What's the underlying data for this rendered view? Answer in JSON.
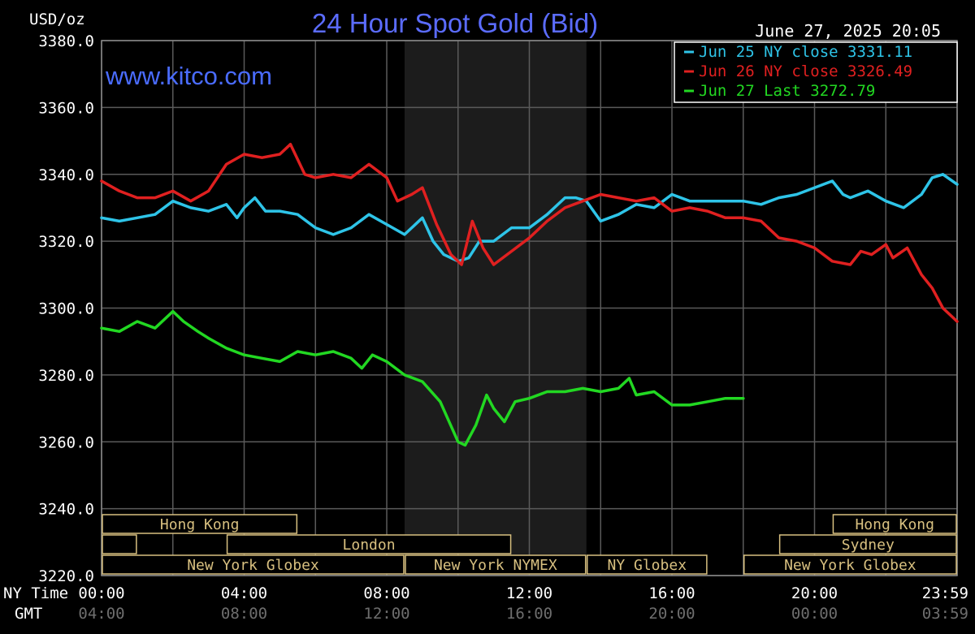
{
  "chart_data": {
    "type": "line",
    "title": "24 Hour Spot Gold (Bid)",
    "ylabel": "USD/oz",
    "watermark": "www.kitco.com",
    "timestamp": "June 27, 2025 20:05",
    "ylim": [
      3220,
      3380
    ],
    "y_ticks": [
      "3380.0",
      "3360.0",
      "3340.0",
      "3320.0",
      "3300.0",
      "3280.0",
      "3260.0",
      "3240.0",
      "3220.0"
    ],
    "x_ticks_ny": [
      "00:00",
      "04:00",
      "08:00",
      "12:00",
      "16:00",
      "20:00",
      "23:59"
    ],
    "x_ticks_gmt": [
      "04:00",
      "08:00",
      "12:00",
      "16:00",
      "20:00",
      "00:00",
      "03:59"
    ],
    "ny_time_label": "NY Time",
    "gmt_label": "GMT",
    "grid": true,
    "legend_position": "top-right",
    "shaded_region_hours": [
      8.5,
      13.6
    ],
    "colors": {
      "background": "#000000",
      "grid": "#5a5a5a",
      "shade": "#1c1c1c",
      "title": "#5b6cff",
      "watermark": "#4a6cff",
      "session": "#d8c080",
      "axis_text": "#ffffff",
      "gmt_text": "#6e6e6e"
    },
    "series": [
      {
        "name": "Jun 25 NY close 3331.11",
        "color": "#2ec4e8",
        "points": [
          [
            0,
            3327
          ],
          [
            0.5,
            3326
          ],
          [
            1,
            3327
          ],
          [
            1.5,
            3328
          ],
          [
            2,
            3332
          ],
          [
            2.5,
            3330
          ],
          [
            3,
            3329
          ],
          [
            3.5,
            3331
          ],
          [
            3.8,
            3327
          ],
          [
            4,
            3330
          ],
          [
            4.3,
            3333
          ],
          [
            4.6,
            3329
          ],
          [
            5,
            3329
          ],
          [
            5.5,
            3328
          ],
          [
            6,
            3324
          ],
          [
            6.5,
            3322
          ],
          [
            7,
            3324
          ],
          [
            7.5,
            3328
          ],
          [
            8,
            3325
          ],
          [
            8.5,
            3322
          ],
          [
            9,
            3327
          ],
          [
            9.3,
            3320
          ],
          [
            9.6,
            3316
          ],
          [
            10,
            3314
          ],
          [
            10.3,
            3315
          ],
          [
            10.6,
            3320
          ],
          [
            11,
            3320
          ],
          [
            11.5,
            3324
          ],
          [
            12,
            3324
          ],
          [
            12.5,
            3328
          ],
          [
            13,
            3333
          ],
          [
            13.3,
            3333
          ],
          [
            13.6,
            3332
          ],
          [
            14,
            3326
          ],
          [
            14.5,
            3328
          ],
          [
            15,
            3331
          ],
          [
            15.5,
            3330
          ],
          [
            16,
            3334
          ],
          [
            16.5,
            3332
          ],
          [
            17,
            3332
          ],
          [
            17.5,
            3332
          ],
          [
            18,
            3332
          ],
          [
            18.5,
            3331
          ],
          [
            19,
            3333
          ],
          [
            19.5,
            3334
          ],
          [
            20,
            3336
          ],
          [
            20.5,
            3338
          ],
          [
            20.8,
            3334
          ],
          [
            21,
            3333
          ],
          [
            21.5,
            3335
          ],
          [
            22,
            3332
          ],
          [
            22.5,
            3330
          ],
          [
            23,
            3334
          ],
          [
            23.3,
            3339
          ],
          [
            23.6,
            3340
          ],
          [
            24,
            3337
          ]
        ]
      },
      {
        "name": "Jun 26 NY close 3326.49",
        "color": "#e02020",
        "points": [
          [
            0,
            3338
          ],
          [
            0.5,
            3335
          ],
          [
            1,
            3333
          ],
          [
            1.5,
            3333
          ],
          [
            2,
            3335
          ],
          [
            2.5,
            3332
          ],
          [
            3,
            3335
          ],
          [
            3.5,
            3343
          ],
          [
            4,
            3346
          ],
          [
            4.5,
            3345
          ],
          [
            5,
            3346
          ],
          [
            5.3,
            3349
          ],
          [
            5.7,
            3340
          ],
          [
            6,
            3339
          ],
          [
            6.5,
            3340
          ],
          [
            7,
            3339
          ],
          [
            7.5,
            3343
          ],
          [
            8,
            3339
          ],
          [
            8.3,
            3332
          ],
          [
            8.7,
            3334
          ],
          [
            9,
            3336
          ],
          [
            9.4,
            3325
          ],
          [
            9.8,
            3316
          ],
          [
            10.1,
            3313
          ],
          [
            10.4,
            3326
          ],
          [
            10.7,
            3318
          ],
          [
            11,
            3313
          ],
          [
            11.5,
            3317
          ],
          [
            12,
            3321
          ],
          [
            12.5,
            3326
          ],
          [
            13,
            3330
          ],
          [
            13.5,
            3332
          ],
          [
            14,
            3334
          ],
          [
            14.5,
            3333
          ],
          [
            15,
            3332
          ],
          [
            15.5,
            3333
          ],
          [
            16,
            3329
          ],
          [
            16.5,
            3330
          ],
          [
            17,
            3329
          ],
          [
            17.5,
            3327
          ],
          [
            18,
            3327
          ],
          [
            18.5,
            3326
          ],
          [
            19,
            3321
          ],
          [
            19.5,
            3320
          ],
          [
            20,
            3318
          ],
          [
            20.5,
            3314
          ],
          [
            21,
            3313
          ],
          [
            21.3,
            3317
          ],
          [
            21.6,
            3316
          ],
          [
            22,
            3319
          ],
          [
            22.2,
            3315
          ],
          [
            22.6,
            3318
          ],
          [
            23,
            3310
          ],
          [
            23.3,
            3306
          ],
          [
            23.6,
            3300
          ],
          [
            24,
            3296
          ]
        ]
      },
      {
        "name": "Jun 27 Last 3272.79",
        "color": "#22d822",
        "points": [
          [
            0,
            3294
          ],
          [
            0.5,
            3293
          ],
          [
            1,
            3296
          ],
          [
            1.5,
            3294
          ],
          [
            2,
            3299
          ],
          [
            2.3,
            3296
          ],
          [
            2.7,
            3293
          ],
          [
            3,
            3291
          ],
          [
            3.5,
            3288
          ],
          [
            4,
            3286
          ],
          [
            4.5,
            3285
          ],
          [
            5,
            3284
          ],
          [
            5.5,
            3287
          ],
          [
            6,
            3286
          ],
          [
            6.5,
            3287
          ],
          [
            7,
            3285
          ],
          [
            7.3,
            3282
          ],
          [
            7.6,
            3286
          ],
          [
            8,
            3284
          ],
          [
            8.5,
            3280
          ],
          [
            9,
            3278
          ],
          [
            9.5,
            3272
          ],
          [
            10,
            3260
          ],
          [
            10.2,
            3259
          ],
          [
            10.5,
            3265
          ],
          [
            10.8,
            3274
          ],
          [
            11,
            3270
          ],
          [
            11.3,
            3266
          ],
          [
            11.6,
            3272
          ],
          [
            12,
            3273
          ],
          [
            12.5,
            3275
          ],
          [
            13,
            3275
          ],
          [
            13.5,
            3276
          ],
          [
            14,
            3275
          ],
          [
            14.5,
            3276
          ],
          [
            14.8,
            3279
          ],
          [
            15,
            3274
          ],
          [
            15.5,
            3275
          ],
          [
            16,
            3271
          ],
          [
            16.5,
            3271
          ],
          [
            17,
            3272
          ],
          [
            17.5,
            3273
          ],
          [
            18,
            3273
          ]
        ]
      }
    ],
    "sessions": [
      {
        "label": "Hong Kong",
        "row": 0,
        "start": 0,
        "end": 5.5
      },
      {
        "label": "Hong Kong",
        "row": 0,
        "start": 20.5,
        "end": 24
      },
      {
        "label": "",
        "row": 1,
        "start": 0,
        "end": 1
      },
      {
        "label": "London",
        "row": 1,
        "start": 3.5,
        "end": 11.5
      },
      {
        "label": "Sydney",
        "row": 1,
        "start": 19,
        "end": 24
      },
      {
        "label": "New York Globex",
        "row": 2,
        "start": 0,
        "end": 8.5
      },
      {
        "label": "New York NYMEX",
        "row": 2,
        "start": 8.5,
        "end": 13.6
      },
      {
        "label": "NY Globex",
        "row": 2,
        "start": 13.6,
        "end": 17
      },
      {
        "label": "New York Globex",
        "row": 2,
        "start": 18,
        "end": 24
      }
    ]
  }
}
